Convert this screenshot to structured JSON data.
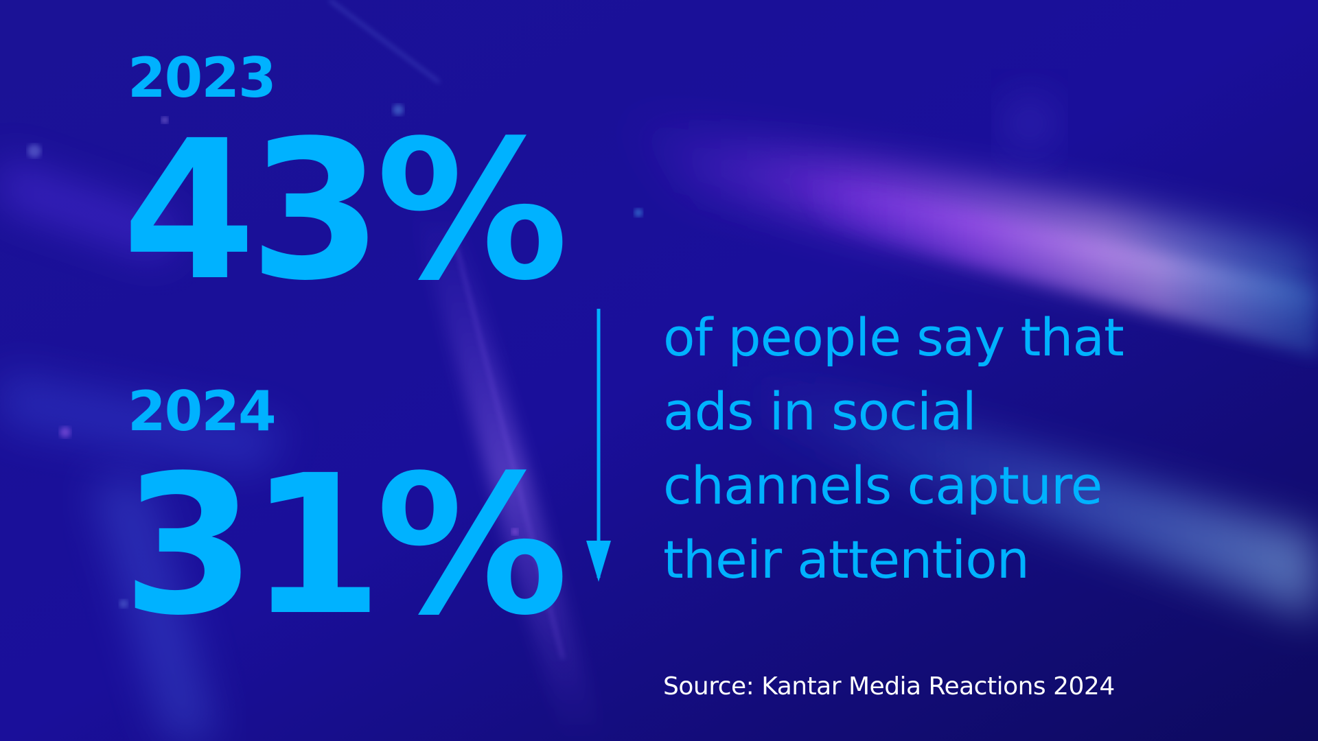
{
  "colors": {
    "accent": "#00b2ff",
    "background": "#160c8c",
    "source_text": "#ffffff"
  },
  "stats": {
    "first": {
      "year": "2023",
      "value": "43%"
    },
    "second": {
      "year": "2024",
      "value": "31%"
    }
  },
  "trend": {
    "direction": "down",
    "icon": "arrow-down-icon"
  },
  "description": {
    "lines": [
      "of people say that",
      "ads in social",
      "channels capture",
      "their attention"
    ]
  },
  "source": "Source: Kantar Media Reactions 2024"
}
